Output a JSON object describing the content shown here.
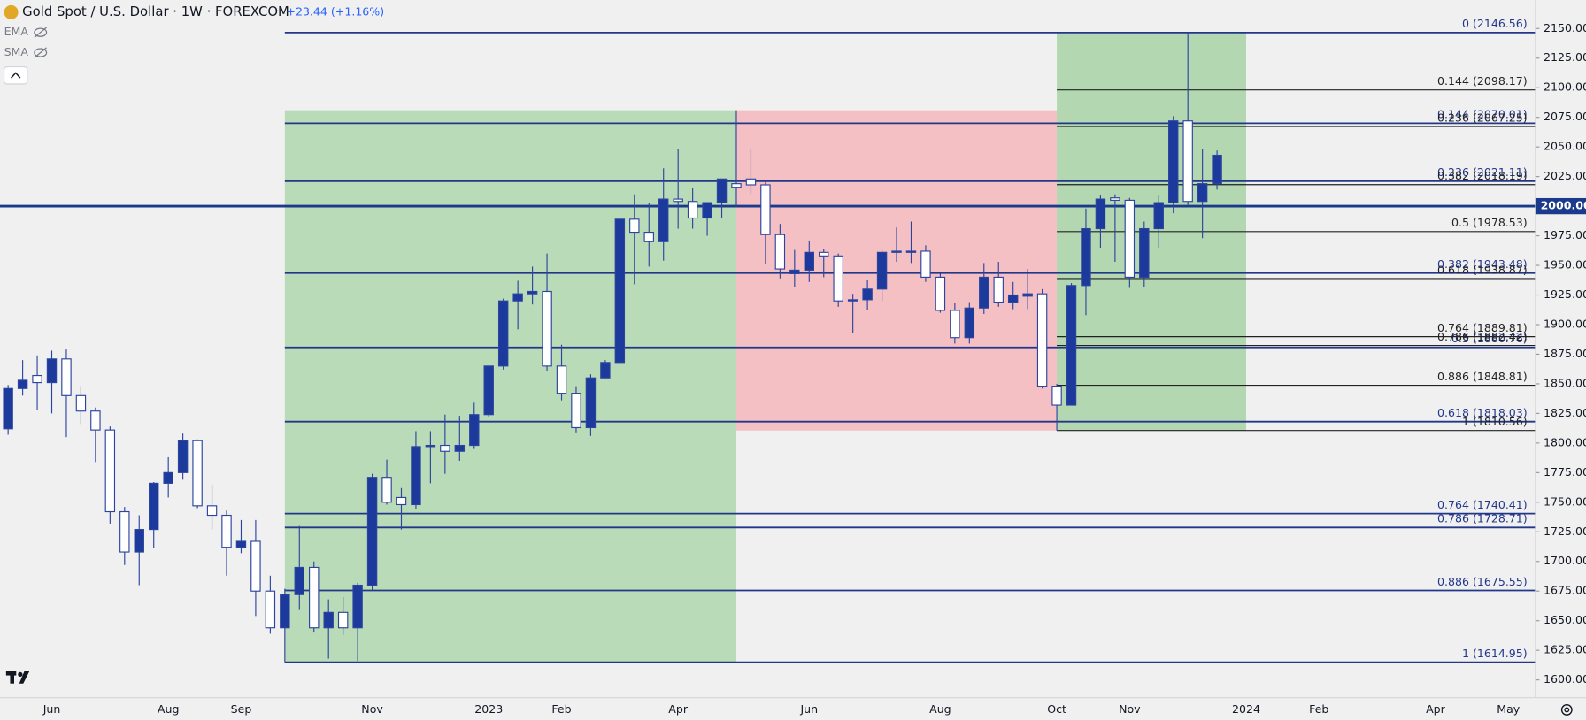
{
  "header": {
    "symbol": "Gold Spot / U.S. Dollar · 1W · FOREXCOM",
    "change": "+23.44 (+1.16%)",
    "indicators": [
      "EMA",
      "SMA"
    ]
  },
  "chart_data": {
    "type": "candlestick",
    "categories": [
      null,
      null,
      null,
      "Jun",
      null,
      null,
      null,
      null,
      null,
      null,
      null,
      "Aug",
      null,
      null,
      null,
      null,
      "Sep",
      null,
      null,
      null,
      null,
      null,
      null,
      null,
      null,
      "Nov",
      null,
      null,
      null,
      null,
      null,
      null,
      null,
      "2023",
      null,
      null,
      null,
      null,
      "Feb",
      null,
      null,
      null,
      null,
      null,
      null,
      null,
      "Apr",
      null,
      null,
      null,
      null,
      null,
      null,
      null,
      null,
      "Jun",
      null,
      null,
      null,
      null,
      null,
      null,
      null,
      null,
      "Aug",
      null,
      null,
      null,
      null,
      null,
      null,
      null,
      "Oct",
      null,
      null,
      null,
      null,
      "Nov",
      null,
      null,
      null,
      null,
      null,
      null,
      null,
      "2024",
      null,
      null,
      null,
      null,
      "Feb",
      null,
      null,
      null,
      null,
      null,
      null,
      null,
      "Apr",
      null,
      null,
      null,
      null,
      "May"
    ],
    "open": [
      1812,
      1846,
      1857,
      1851,
      1871,
      1840,
      1827,
      1811,
      1742,
      1708,
      1727,
      1766,
      1775,
      1802,
      1747,
      1739,
      1712,
      1717,
      1675,
      1644,
      1672,
      1695,
      1644,
      1657,
      1644,
      1680,
      1771,
      1754,
      1748,
      1797,
      1798,
      1793,
      1798,
      1824,
      1865,
      1920,
      1926,
      1928,
      1865,
      1842,
      1813,
      1855,
      1868,
      1989,
      1978,
      1970,
      2006,
      2004,
      1990,
      2003,
      2019,
      2023,
      2018,
      1976,
      1943,
      1946,
      1961,
      1958,
      1920,
      1921,
      1930,
      1961,
      1961,
      1962,
      1940,
      1912,
      1889,
      1914,
      1940,
      1919,
      1924,
      1926,
      1848,
      1832,
      1933,
      1981,
      2007,
      2005,
      1940,
      1981,
      2003,
      2072,
      2004,
      2019,
      null,
      null,
      null,
      null,
      null,
      null,
      null,
      null,
      null,
      null,
      null,
      null,
      null,
      null,
      null,
      null,
      null,
      null,
      null,
      null
    ],
    "high": [
      1849,
      1870,
      1874,
      1878,
      1879,
      1848,
      1830,
      1814,
      1746,
      1739,
      1767,
      1788,
      1808,
      1803,
      1765,
      1743,
      1735,
      1735,
      1688,
      1677,
      1730,
      1700,
      1668,
      1670,
      1682,
      1774,
      1786,
      1762,
      1810,
      1810,
      1824,
      1823,
      1834,
      1865,
      1922,
      1937,
      1949,
      1960,
      1883,
      1848,
      1858,
      1870,
      1990,
      2010,
      2003,
      2032,
      2048,
      2015,
      2003,
      2023,
      2081,
      2048,
      2022,
      1985,
      1963,
      1971,
      1964,
      1960,
      1926,
      1938,
      1963,
      1982,
      1987,
      1967,
      1943,
      1918,
      1919,
      1952,
      1953,
      1936,
      1947,
      1930,
      1850,
      1935,
      1998,
      2009,
      2010,
      2007,
      1987,
      2009,
      2076,
      2146.56,
      2048,
      2047,
      null,
      null,
      null,
      null,
      null,
      null,
      null,
      null,
      null,
      null,
      null,
      null,
      null,
      null,
      null,
      null,
      null,
      null,
      null,
      null
    ],
    "low": [
      1807,
      1840,
      1828,
      1825,
      1805,
      1816,
      1784,
      1732,
      1697,
      1680,
      1711,
      1754,
      1769,
      1745,
      1727,
      1688,
      1707,
      1654,
      1639,
      1614.95,
      1659,
      1640,
      1618,
      1638,
      1616,
      1676,
      1748,
      1727,
      1744,
      1766,
      1774,
      1785,
      1795,
      1822,
      1862,
      1896,
      1917,
      1861,
      1836,
      1809,
      1806,
      1855,
      1868,
      1934,
      1949,
      1954,
      1981,
      1981,
      1975,
      1990,
      1999,
      2010,
      1951,
      1939,
      1932,
      1936,
      1940,
      1915,
      1893,
      1912,
      1920,
      1953,
      1952,
      1936,
      1910,
      1884,
      1884,
      1909,
      1915,
      1913,
      1913,
      1846,
      1810.56,
      1832,
      1908,
      1965,
      1953,
      1931,
      1932,
      1965,
      1994,
      2000,
      1973,
      2014,
      null,
      null,
      null,
      null,
      null,
      null,
      null,
      null,
      null,
      null,
      null,
      null,
      null,
      null,
      null,
      null,
      null,
      null,
      null,
      null
    ],
    "close": [
      1846,
      1853,
      1851,
      1871,
      1840,
      1827,
      1811,
      1742,
      1708,
      1727,
      1766,
      1775,
      1802,
      1747,
      1739,
      1712,
      1717,
      1675,
      1644,
      1672,
      1695,
      1644,
      1657,
      1644,
      1680,
      1771,
      1750,
      1748,
      1797,
      1798,
      1793,
      1798,
      1824,
      1865,
      1920,
      1926,
      1928,
      1865,
      1842,
      1813,
      1855,
      1868,
      1989,
      1978,
      1970,
      2006,
      2004,
      1990,
      2003,
      2023,
      2016,
      2018,
      1976,
      1947,
      1946,
      1961,
      1958,
      1920,
      1921,
      1930,
      1961,
      1962,
      1962,
      1940,
      1912,
      1889,
      1914,
      1940,
      1919,
      1925,
      1926,
      1848,
      1832,
      1933,
      1981,
      2006,
      2005,
      1940,
      1981,
      2003,
      2072,
      2004,
      2019,
      2043,
      null,
      null,
      null,
      null,
      null,
      null,
      null,
      null,
      null,
      null,
      null,
      null,
      null,
      null,
      null,
      null,
      null,
      null,
      null,
      null
    ],
    "up_color": "#1b3a9c",
    "down_color": "#ffffff",
    "wick_color": "#2c44a0",
    "ylim": [
      1585,
      2174
    ],
    "yticks": [
      {
        "value": 1600,
        "label": "1600.00"
      },
      {
        "value": 1625,
        "label": "1625.00"
      },
      {
        "value": 1650,
        "label": "1650.00"
      },
      {
        "value": 1675,
        "label": "1675.00"
      },
      {
        "value": 1700,
        "label": "1700.00"
      },
      {
        "value": 1725,
        "label": "1725.00"
      },
      {
        "value": 1750,
        "label": "1750.00"
      },
      {
        "value": 1775,
        "label": "1775.00"
      },
      {
        "value": 1800,
        "label": "1800.00"
      },
      {
        "value": 1825,
        "label": "1825.00"
      },
      {
        "value": 1850,
        "label": "1850.00"
      },
      {
        "value": 1875,
        "label": "1875.00"
      },
      {
        "value": 1900,
        "label": "1900.00"
      },
      {
        "value": 1925,
        "label": "1925.00"
      },
      {
        "value": 1950,
        "label": "1950.00"
      },
      {
        "value": 1975,
        "label": "1975.00"
      },
      {
        "value": 2000,
        "label": "2000.00"
      },
      {
        "value": 2025,
        "label": "2025.00"
      },
      {
        "value": 2050,
        "label": "2050.00"
      },
      {
        "value": 2075,
        "label": "2075.00"
      },
      {
        "value": 2100,
        "label": "2100.00"
      },
      {
        "value": 2125,
        "label": "2125.00"
      },
      {
        "value": 2150,
        "label": "2150.00"
      }
    ],
    "price_line": {
      "value": 2000,
      "label": "2000.00",
      "color": "#1b3a8c"
    },
    "zones": [
      {
        "start": 19,
        "end": 50,
        "top": 2081,
        "bottom": 1614.95,
        "color": "#b9dbb7"
      },
      {
        "start": 50,
        "end": 72,
        "top": 2081,
        "bottom": 1810.56,
        "color": "#f4c0c4"
      },
      {
        "start": 72,
        "end": 85,
        "top": 2146.56,
        "bottom": 1810.56,
        "color": "#b3d8b1"
      }
    ],
    "fib_sets": [
      {
        "start": 19,
        "color": "#23378a",
        "levels": [
          {
            "value": 2146.56,
            "label": "0 (2146.56)"
          },
          {
            "value": 2070.01,
            "label": "0.144 (2070.01)"
          },
          {
            "value": 2021.11,
            "label": "0.236 (2021.11)"
          },
          {
            "value": 1943.48,
            "label": "0.382 (1943.48)"
          },
          {
            "value": 1880.76,
            "label": "0.5 (1880.76)"
          },
          {
            "value": 1818.03,
            "label": "0.618 (1818.03)"
          },
          {
            "value": 1740.41,
            "label": "0.764 (1740.41)"
          },
          {
            "value": 1728.71,
            "label": "0.786 (1728.71)"
          },
          {
            "value": 1675.55,
            "label": "0.886 (1675.55)"
          },
          {
            "value": 1614.95,
            "label": "1 (1614.95)"
          }
        ]
      },
      {
        "start": 72,
        "color": "#222222",
        "levels": [
          {
            "value": 2098.17,
            "label": "0.144 (2098.17)"
          },
          {
            "value": 2067.25,
            "label": "0.236 (2067.25)"
          },
          {
            "value": 2018.19,
            "label": "0.382 (2018.19)"
          },
          {
            "value": 1978.53,
            "label": "0.5 (1978.53)"
          },
          {
            "value": 1938.87,
            "label": "0.618 (1938.87)"
          },
          {
            "value": 1889.81,
            "label": "0.764 (1889.81)"
          },
          {
            "value": 1882.42,
            "label": "0.786 (1882.42)"
          },
          {
            "value": 1848.81,
            "label": "0.886 (1848.81)"
          },
          {
            "value": 1810.56,
            "label": "1 (1810.56)"
          }
        ]
      }
    ]
  }
}
